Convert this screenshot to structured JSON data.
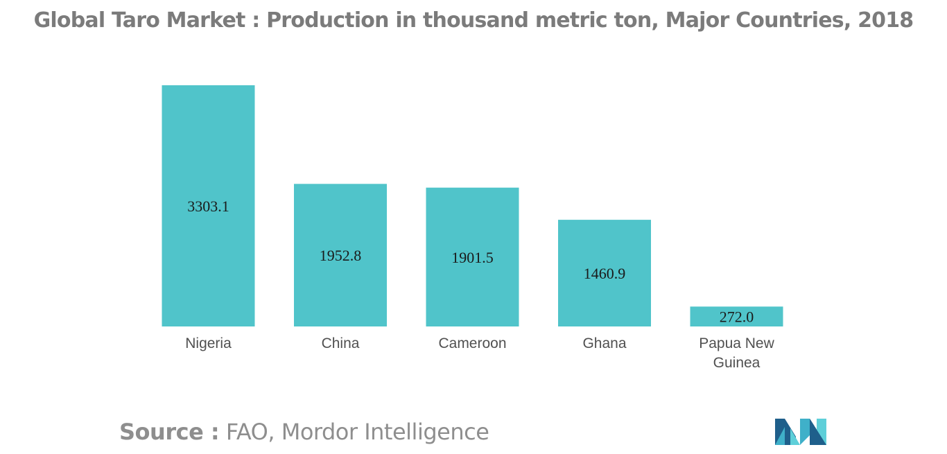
{
  "chart_data": {
    "type": "bar",
    "title": "Global Taro Market : Production in thousand metric ton, Major Countries, 2018",
    "categories": [
      "Nigeria",
      "China",
      "Cameroon",
      "Ghana",
      "Papua New Guinea"
    ],
    "category_lines": [
      [
        "Nigeria"
      ],
      [
        "China"
      ],
      [
        "Cameroon"
      ],
      [
        "Ghana"
      ],
      [
        "Papua New",
        "Guinea"
      ]
    ],
    "values": [
      3303.1,
      1952.8,
      1901.5,
      1460.9,
      272.0
    ],
    "value_labels": [
      "3303.1",
      "1952.8",
      "1901.5",
      "1460.9",
      "272.0"
    ],
    "xlabel": "",
    "ylabel": "",
    "ylim": [
      0,
      3303.1
    ],
    "grid": false,
    "legend": "none",
    "bar_color": "#50c4ca"
  },
  "source": {
    "label": "Source :",
    "text": "FAO, Mordor Intelligence"
  },
  "logo": {
    "icon": "mordor-intelligence-logo-icon",
    "colors": [
      "#1f5f8b",
      "#3fb0c9",
      "#5ecfd9"
    ]
  }
}
